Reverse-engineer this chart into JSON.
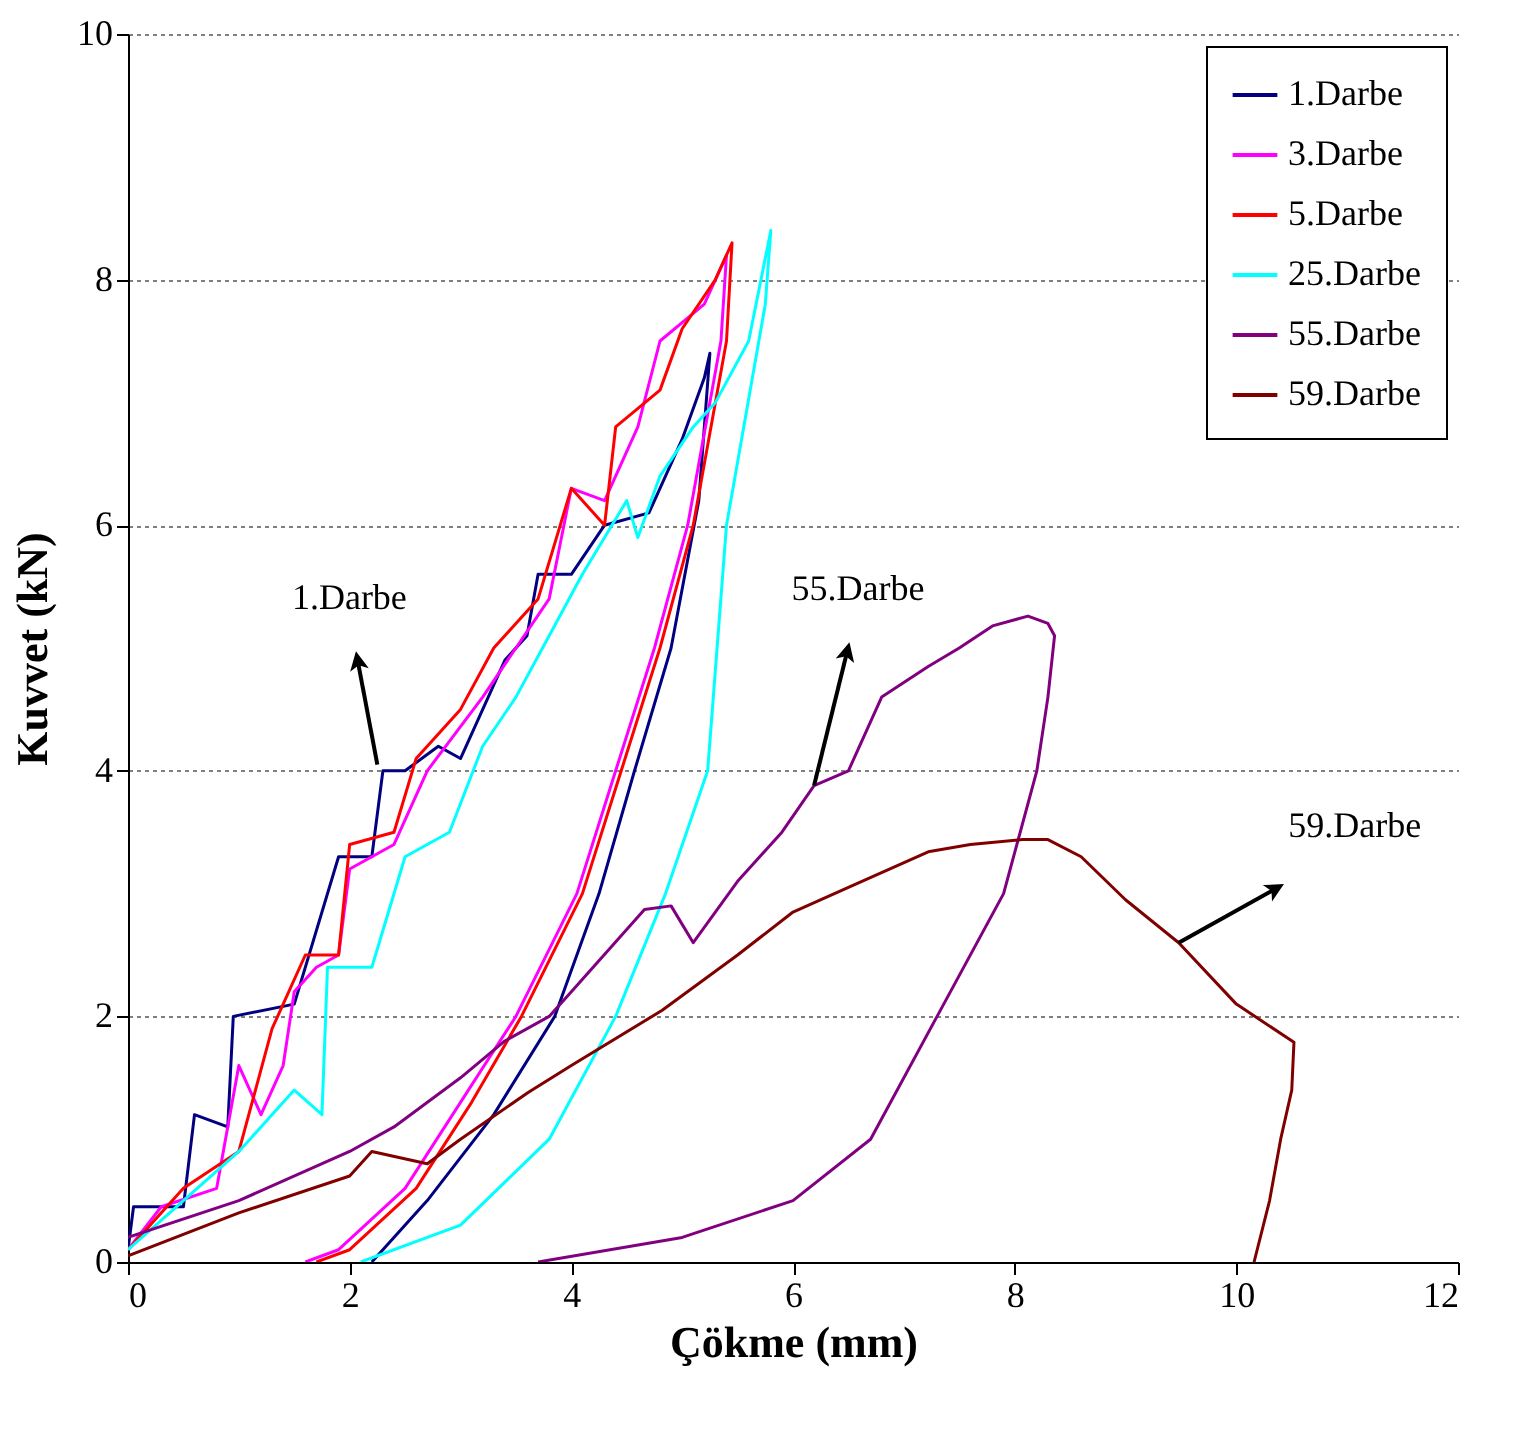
{
  "chart_data": {
    "type": "line",
    "xlabel": "Çökme (mm)",
    "ylabel": "Kuvvet (kN)",
    "xlim": [
      0,
      12
    ],
    "ylim": [
      0,
      10
    ],
    "xticks": [
      0,
      2,
      4,
      6,
      8,
      10,
      12
    ],
    "yticks": [
      0,
      2,
      4,
      6,
      8,
      10
    ],
    "grid": "y",
    "legend": "top right",
    "line_style": "solid",
    "marker": "none",
    "series": [
      {
        "name": "1.Darbe",
        "color": "#000080",
        "x": [
          0,
          0.05,
          0.5,
          0.6,
          0.9,
          0.95,
          1.5,
          1.9,
          2.2,
          2.3,
          2.5,
          2.8,
          3.0,
          3.4,
          3.6,
          3.7,
          4.0,
          4.3,
          4.7,
          5.0,
          5.2,
          5.25,
          5.15,
          4.9,
          4.57,
          4.25,
          3.85,
          3.3,
          2.7,
          2.2
        ],
        "values": [
          0.1,
          0.45,
          0.45,
          1.2,
          1.1,
          2.0,
          2.1,
          3.3,
          3.3,
          4.0,
          4.0,
          4.2,
          4.1,
          4.9,
          5.1,
          5.6,
          5.6,
          6.0,
          6.1,
          6.7,
          7.2,
          7.4,
          6.2,
          5.0,
          4.0,
          3.0,
          2.0,
          1.2,
          0.5,
          0
        ]
      },
      {
        "name": "3.Darbe",
        "color": "#ff00ff",
        "x": [
          0,
          0.3,
          0.8,
          1.0,
          1.2,
          1.4,
          1.5,
          1.7,
          1.9,
          2.0,
          2.4,
          2.7,
          3.2,
          3.5,
          3.8,
          4.0,
          4.3,
          4.6,
          4.8,
          5.2,
          5.4,
          5.35,
          5.05,
          4.75,
          4.4,
          4.05,
          3.5,
          3.0,
          2.5,
          1.9,
          1.6
        ],
        "values": [
          0.1,
          0.45,
          0.6,
          1.6,
          1.2,
          1.6,
          2.2,
          2.4,
          2.5,
          3.2,
          3.4,
          4.0,
          4.6,
          5.0,
          5.4,
          6.3,
          6.2,
          6.8,
          7.5,
          7.8,
          8.2,
          7.5,
          6.0,
          5.0,
          4.0,
          3.0,
          2.0,
          1.3,
          0.6,
          0.1,
          0
        ]
      },
      {
        "name": "5.Darbe",
        "color": "#ff0000",
        "x": [
          0,
          0.5,
          1.0,
          1.3,
          1.6,
          1.9,
          2.0,
          2.4,
          2.6,
          3.0,
          3.3,
          3.7,
          4.0,
          4.3,
          4.4,
          4.8,
          5.0,
          5.3,
          5.45,
          5.4,
          5.1,
          4.8,
          4.45,
          4.1,
          3.55,
          3.1,
          2.6,
          2.0,
          1.7
        ],
        "values": [
          0.1,
          0.6,
          0.9,
          1.9,
          2.5,
          2.5,
          3.4,
          3.5,
          4.1,
          4.5,
          5.0,
          5.4,
          6.3,
          6.0,
          6.8,
          7.1,
          7.6,
          8.0,
          8.3,
          7.5,
          6.0,
          5.0,
          4.0,
          3.0,
          2.0,
          1.3,
          0.6,
          0.1,
          0
        ]
      },
      {
        "name": "25.Darbe",
        "color": "#00ffff",
        "x": [
          0,
          0.5,
          1.0,
          1.5,
          1.75,
          1.8,
          2.2,
          2.5,
          2.9,
          3.2,
          3.5,
          3.8,
          4.1,
          4.5,
          4.6,
          4.8,
          5.1,
          5.3,
          5.6,
          5.8,
          5.75,
          5.4,
          5.23,
          4.85,
          4.4,
          3.8,
          3.0,
          2.1
        ],
        "values": [
          0.1,
          0.5,
          0.9,
          1.4,
          1.2,
          2.4,
          2.4,
          3.3,
          3.5,
          4.2,
          4.6,
          5.1,
          5.6,
          6.2,
          5.9,
          6.4,
          6.8,
          7.0,
          7.5,
          8.4,
          7.8,
          6.0,
          4.0,
          3.0,
          2.0,
          1.0,
          0.3,
          0
        ]
      },
      {
        "name": "55.Darbe",
        "color": "#800080",
        "x": [
          0,
          1,
          2,
          2.4,
          3.0,
          3.4,
          3.8,
          4.0,
          4.66,
          4.9,
          5.1,
          5.5,
          5.9,
          6.19,
          6.5,
          6.8,
          7.22,
          7.5,
          7.8,
          8.12,
          8.3,
          8.36,
          8.3,
          8.2,
          7.9,
          7.3,
          6.7,
          6.0,
          5.0,
          3.7
        ],
        "values": [
          0.2,
          0.5,
          0.9,
          1.1,
          1.5,
          1.8,
          2.0,
          2.2,
          2.87,
          2.9,
          2.6,
          3.1,
          3.5,
          3.88,
          4.0,
          4.6,
          4.85,
          5.0,
          5.18,
          5.26,
          5.2,
          5.1,
          4.6,
          4.0,
          3.0,
          2.0,
          1.0,
          0.5,
          0.2,
          0
        ]
      },
      {
        "name": "59.Darbe",
        "color": "#800000",
        "x": [
          0,
          1,
          2,
          2.2,
          2.7,
          3.0,
          3.61,
          4.0,
          4.82,
          5.5,
          6.0,
          6.5,
          7.22,
          7.6,
          8.07,
          8.3,
          8.6,
          9.0,
          9.48,
          10.0,
          10.52,
          10.5,
          10.4,
          10.3,
          10.16
        ],
        "values": [
          0.05,
          0.4,
          0.7,
          0.9,
          0.8,
          1.0,
          1.38,
          1.6,
          2.05,
          2.5,
          2.85,
          3.05,
          3.34,
          3.4,
          3.44,
          3.44,
          3.3,
          2.95,
          2.6,
          2.1,
          1.79,
          1.4,
          1.0,
          0.5,
          0
        ]
      }
    ],
    "annotations": [
      {
        "text": "1.Darbe",
        "x": 2.25,
        "y": 4.05
      },
      {
        "text": "55.Darbe",
        "x": 6.19,
        "y": 3.88
      },
      {
        "text": "59.Darbe",
        "x": 9.48,
        "y": 2.6
      }
    ]
  }
}
